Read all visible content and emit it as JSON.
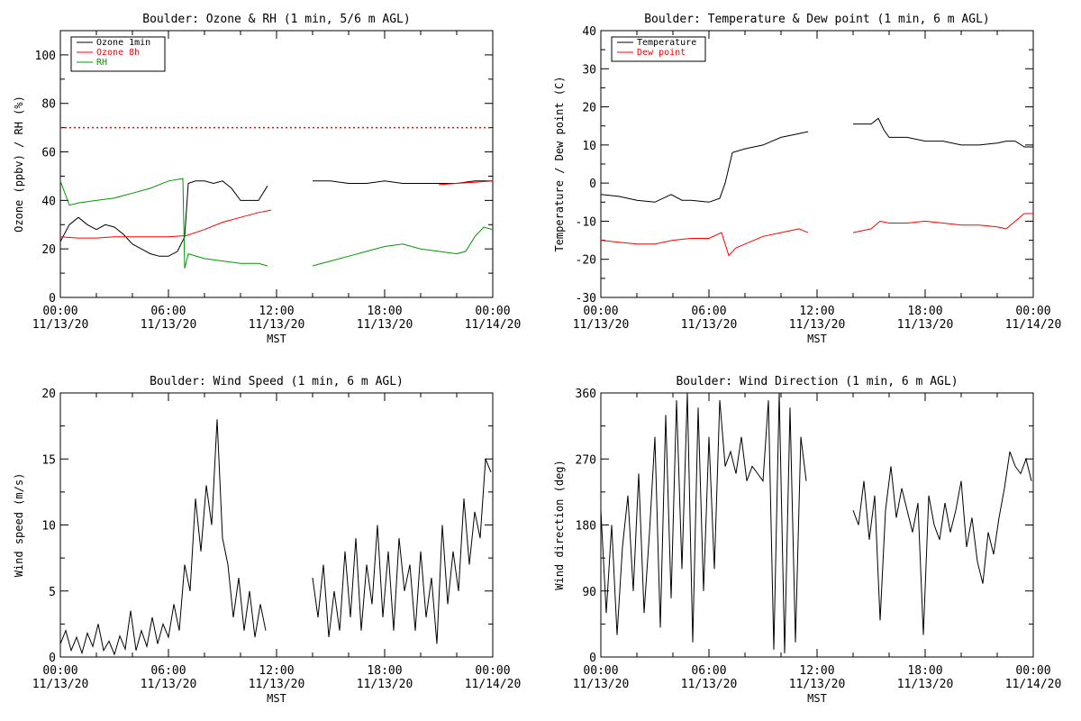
{
  "chart_data": [
    {
      "type": "line",
      "title": "Boulder: Ozone & RH (1 min, 5/6 m AGL)",
      "xlabel": "MST",
      "ylabel": "Ozone (ppbv) / RH (%)",
      "xlim": [
        "00:00 11/13/20",
        "00:00 11/14/20"
      ],
      "x_ticks": [
        "00:00\n11/13/20",
        "06:00\n11/13/20",
        "12:00\n11/13/20",
        "18:00\n11/13/20",
        "00:00\n11/14/20"
      ],
      "ylim": [
        0,
        110
      ],
      "y_ticks": [
        0,
        20,
        40,
        60,
        80,
        100
      ],
      "legend_position": "top-left",
      "reference_line": {
        "value": 70,
        "color": "#ff0000",
        "style": "dotted"
      },
      "series": [
        {
          "name": "Ozone 1min",
          "color": "#000000",
          "x": [
            0,
            0.5,
            1,
            1.5,
            2,
            2.5,
            3,
            3.5,
            4,
            4.5,
            5,
            5.5,
            6,
            6.5,
            6.9,
            7.1,
            7.5,
            8,
            8.5,
            9,
            9.5,
            10,
            10.5,
            11,
            11.5,
            null,
            14,
            15,
            16,
            17,
            18,
            19,
            20,
            21,
            22,
            23,
            24
          ],
          "y": [
            23,
            30,
            33,
            30,
            28,
            30,
            29,
            26,
            22,
            20,
            18,
            17,
            17,
            19,
            25,
            47,
            48,
            48,
            47,
            48,
            45,
            40,
            40,
            40,
            46,
            null,
            48,
            48,
            47,
            47,
            48,
            47,
            47,
            47,
            47,
            48,
            48
          ]
        },
        {
          "name": "Ozone 8h",
          "color": "#ff0000",
          "x": [
            0,
            1,
            2,
            3,
            4,
            5,
            6,
            7,
            8,
            9,
            10,
            11,
            11.7,
            null,
            21,
            22,
            23,
            24
          ],
          "y": [
            25,
            24.5,
            24.5,
            25,
            25,
            25,
            25,
            25.5,
            28,
            31,
            33,
            35,
            36,
            null,
            46.5,
            47,
            47.5,
            48
          ]
        },
        {
          "name": "RH",
          "color": "#009900",
          "x": [
            0,
            0.5,
            1,
            2,
            3,
            4,
            5,
            6,
            6.8,
            6.9,
            7.1,
            8,
            9,
            10,
            11,
            11.5,
            null,
            14,
            15,
            16,
            17,
            18,
            19,
            20,
            21,
            22,
            22.5,
            23,
            23.5,
            24
          ],
          "y": [
            48,
            38,
            39,
            40,
            41,
            43,
            45,
            48,
            49,
            12,
            18,
            16,
            15,
            14,
            14,
            13,
            null,
            13,
            15,
            17,
            19,
            21,
            22,
            20,
            19,
            18,
            19,
            25,
            29,
            28
          ]
        }
      ]
    },
    {
      "type": "line",
      "title": "Boulder: Temperature & Dew point (1 min, 6 m AGL)",
      "xlabel": "MST",
      "ylabel": "Temperature / Dew point (C)",
      "xlim": [
        "00:00 11/13/20",
        "00:00 11/14/20"
      ],
      "x_ticks": [
        "00:00\n11/13/20",
        "06:00\n11/13/20",
        "12:00\n11/13/20",
        "18:00\n11/13/20",
        "00:00\n11/14/20"
      ],
      "ylim": [
        -30,
        40
      ],
      "y_ticks": [
        -30,
        -20,
        -10,
        0,
        10,
        20,
        30,
        40
      ],
      "legend_position": "top-left",
      "series": [
        {
          "name": "Temperature",
          "color": "#000000",
          "x": [
            0,
            1,
            2,
            3,
            3.9,
            4.5,
            5,
            6,
            6.6,
            6.9,
            7.3,
            8,
            9,
            10,
            11,
            11.5,
            null,
            14,
            14.5,
            15,
            15.4,
            15.7,
            16,
            17,
            18,
            19,
            20,
            21,
            22,
            22.5,
            23,
            23.5,
            24
          ],
          "y": [
            -3,
            -3.5,
            -4.5,
            -5,
            -3,
            -4.5,
            -4.5,
            -5,
            -4,
            0,
            8,
            9,
            10,
            12,
            13,
            13.5,
            null,
            15.5,
            15.5,
            15.5,
            17,
            14,
            12,
            12,
            11,
            11,
            10,
            10,
            10.5,
            11,
            11,
            9.5,
            9.5
          ]
        },
        {
          "name": "Dew point",
          "color": "#ff0000",
          "x": [
            0,
            1,
            2,
            3,
            4,
            5,
            6,
            6.7,
            7.1,
            7.5,
            8,
            9,
            10,
            11,
            11.5,
            null,
            14,
            14.5,
            15,
            15.5,
            16,
            17,
            18,
            19,
            20,
            21,
            22,
            22.5,
            23,
            23.5,
            24
          ],
          "y": [
            -15,
            -15.5,
            -16,
            -16,
            -15,
            -14.5,
            -14.5,
            -13,
            -19,
            -17,
            -16,
            -14,
            -13,
            -12,
            -13,
            null,
            -13,
            -12.5,
            -12,
            -10,
            -10.5,
            -10.5,
            -10,
            -10.5,
            -11,
            -11,
            -11.5,
            -12,
            -10,
            -8,
            -8
          ]
        }
      ]
    },
    {
      "type": "line",
      "title": "Boulder: Wind Speed (1 min, 6 m AGL)",
      "xlabel": "MST",
      "ylabel": "Wind speed (m/s)",
      "xlim": [
        "00:00 11/13/20",
        "00:00 11/14/20"
      ],
      "x_ticks": [
        "00:00\n11/13/20",
        "06:00\n11/13/20",
        "12:00\n11/13/20",
        "18:00\n11/13/20",
        "00:00\n11/14/20"
      ],
      "ylim": [
        0,
        20
      ],
      "y_ticks": [
        0,
        5,
        10,
        15,
        20
      ],
      "series": [
        {
          "name": "",
          "color": "#000000",
          "x": [
            0,
            0.3,
            0.6,
            0.9,
            1.2,
            1.5,
            1.8,
            2.1,
            2.4,
            2.7,
            3,
            3.3,
            3.6,
            3.9,
            4.2,
            4.5,
            4.8,
            5.1,
            5.4,
            5.7,
            6,
            6.3,
            6.6,
            6.9,
            7.2,
            7.5,
            7.8,
            8.1,
            8.4,
            8.7,
            9,
            9.3,
            9.6,
            9.9,
            10.2,
            10.5,
            10.8,
            11.1,
            11.4,
            null,
            14,
            14.3,
            14.6,
            14.9,
            15.2,
            15.5,
            15.8,
            16.1,
            16.4,
            16.7,
            17,
            17.3,
            17.6,
            17.9,
            18.2,
            18.5,
            18.8,
            19.1,
            19.4,
            19.7,
            20,
            20.3,
            20.6,
            20.9,
            21.2,
            21.5,
            21.8,
            22.1,
            22.4,
            22.7,
            23,
            23.3,
            23.6,
            23.9
          ],
          "y": [
            1,
            2,
            0.5,
            1.5,
            0.3,
            1.8,
            0.8,
            2.5,
            0.5,
            1.2,
            0.2,
            1.6,
            0.6,
            3.5,
            0.5,
            2,
            0.8,
            3,
            1,
            2.5,
            1.5,
            4,
            2,
            7,
            5,
            12,
            8,
            13,
            10,
            18,
            9,
            7,
            3,
            6,
            2,
            5,
            1.5,
            4,
            2,
            null,
            6,
            3,
            7,
            1.5,
            5,
            2,
            8,
            3,
            9,
            2,
            7,
            4,
            10,
            3,
            8,
            2,
            9,
            5,
            7,
            2,
            8,
            3,
            6,
            1,
            10,
            4,
            8,
            5,
            12,
            7,
            11,
            9,
            15,
            14
          ]
        }
      ]
    },
    {
      "type": "line",
      "title": "Boulder: Wind Direction (1 min, 6 m AGL)",
      "xlabel": "MST",
      "ylabel": "Wind direction (deg)",
      "xlim": [
        "00:00 11/13/20",
        "00:00 11/14/20"
      ],
      "x_ticks": [
        "00:00\n11/13/20",
        "06:00\n11/13/20",
        "12:00\n11/13/20",
        "18:00\n11/13/20",
        "00:00\n11/14/20"
      ],
      "ylim": [
        0,
        360
      ],
      "y_ticks": [
        0,
        90,
        180,
        270,
        360
      ],
      "series": [
        {
          "name": "",
          "color": "#000000",
          "x": [
            0,
            0.3,
            0.6,
            0.9,
            1.2,
            1.5,
            1.8,
            2.1,
            2.4,
            2.7,
            3,
            3.3,
            3.6,
            3.9,
            4.2,
            4.5,
            4.8,
            5.1,
            5.4,
            5.7,
            6,
            6.3,
            6.6,
            6.9,
            7.2,
            7.5,
            7.8,
            8.1,
            8.4,
            8.7,
            9,
            9.3,
            9.6,
            9.9,
            10.2,
            10.5,
            10.8,
            11.1,
            11.4,
            null,
            14,
            14.3,
            14.6,
            14.9,
            15.2,
            15.5,
            15.8,
            16.1,
            16.4,
            16.7,
            17,
            17.3,
            17.6,
            17.9,
            18.2,
            18.5,
            18.8,
            19.1,
            19.4,
            19.7,
            20,
            20.3,
            20.6,
            20.9,
            21.2,
            21.5,
            21.8,
            22.1,
            22.4,
            22.7,
            23,
            23.3,
            23.6,
            23.9
          ],
          "y": [
            200,
            60,
            180,
            30,
            150,
            220,
            90,
            250,
            60,
            170,
            300,
            40,
            330,
            80,
            350,
            120,
            360,
            20,
            340,
            90,
            300,
            120,
            350,
            260,
            280,
            250,
            300,
            240,
            260,
            250,
            240,
            350,
            10,
            360,
            5,
            340,
            20,
            300,
            240,
            null,
            200,
            180,
            240,
            160,
            220,
            50,
            200,
            260,
            190,
            230,
            200,
            170,
            210,
            30,
            220,
            180,
            160,
            210,
            170,
            200,
            240,
            150,
            190,
            130,
            100,
            170,
            140,
            190,
            230,
            280,
            260,
            250,
            270,
            240
          ]
        }
      ]
    }
  ]
}
